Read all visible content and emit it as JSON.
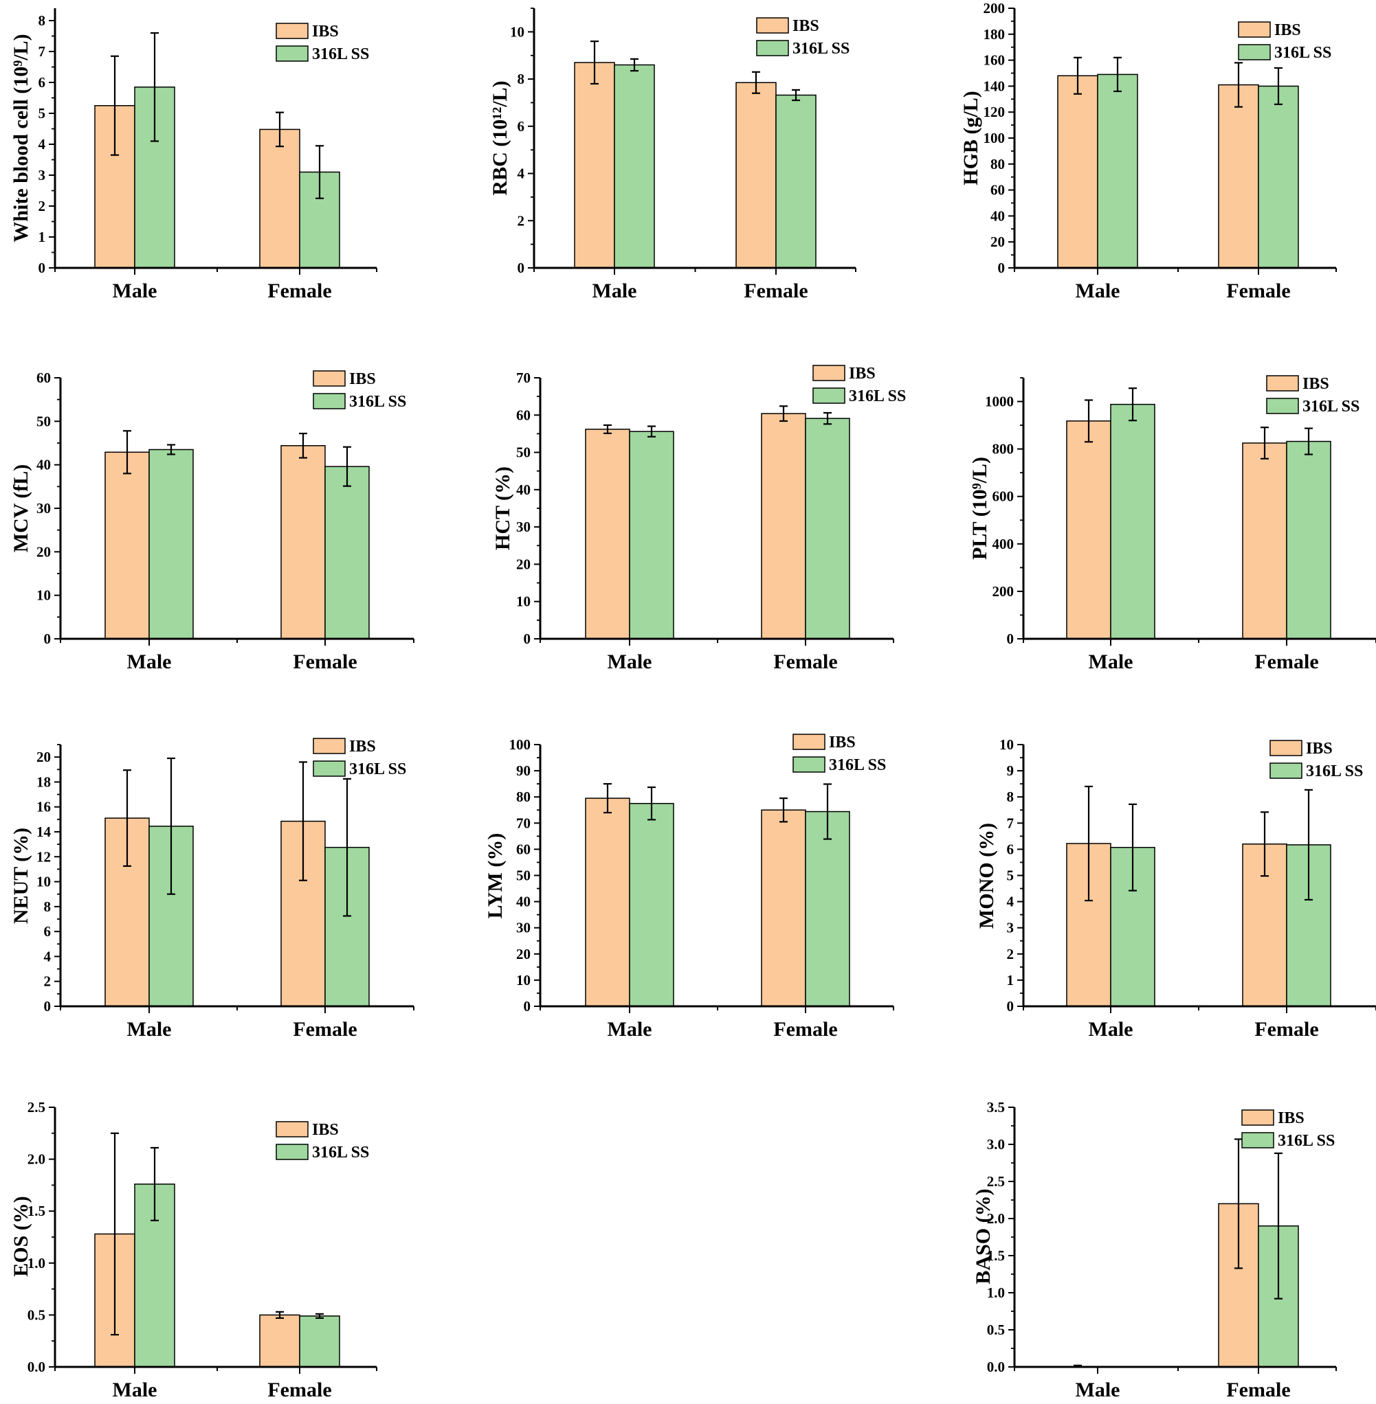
{
  "colors": {
    "IBS": "#fcc99a",
    "316L SS": "#a0d89f",
    "axis": "#000000"
  },
  "chart_data": [
    {
      "id": "wbc",
      "type": "bar",
      "ylabel": "White blood cell (10⁹/L)",
      "categories": [
        "Male",
        "Female"
      ],
      "ylim": [
        0,
        8.4
      ],
      "yticks": [
        "0",
        "1",
        "2",
        "3",
        "4",
        "5",
        "6",
        "7",
        "8"
      ],
      "ytick_values": [
        0,
        1,
        2,
        3,
        4,
        5,
        6,
        7,
        8
      ],
      "series": [
        {
          "name": "IBS",
          "values": [
            5.25,
            4.48
          ],
          "errors": [
            1.6,
            0.55
          ]
        },
        {
          "name": "316L SS",
          "values": [
            5.85,
            3.1
          ],
          "errors": [
            1.75,
            0.85
          ]
        }
      ]
    },
    {
      "id": "rbc",
      "type": "bar",
      "ylabel": "RBC (10¹²/L)",
      "categories": [
        "Male",
        "Female"
      ],
      "ylim": [
        0,
        11
      ],
      "yticks": [
        "0",
        "2",
        "4",
        "6",
        "8",
        "10"
      ],
      "ytick_values": [
        0,
        2,
        4,
        6,
        8,
        10
      ],
      "series": [
        {
          "name": "IBS",
          "values": [
            8.7,
            7.85
          ],
          "errors": [
            0.9,
            0.45
          ]
        },
        {
          "name": "316L SS",
          "values": [
            8.6,
            7.32
          ],
          "errors": [
            0.25,
            0.22
          ]
        }
      ]
    },
    {
      "id": "hgb",
      "type": "bar",
      "ylabel": "HGB (g/L)",
      "categories": [
        "Male",
        "Female"
      ],
      "ylim": [
        0,
        200
      ],
      "yticks": [
        "0",
        "20",
        "40",
        "60",
        "80",
        "100",
        "120",
        "140",
        "160",
        "180",
        "200"
      ],
      "ytick_values": [
        0,
        20,
        40,
        60,
        80,
        100,
        120,
        140,
        160,
        180,
        200
      ],
      "series": [
        {
          "name": "IBS",
          "values": [
            148,
            141
          ],
          "errors": [
            14,
            17
          ]
        },
        {
          "name": "316L SS",
          "values": [
            149,
            140
          ],
          "errors": [
            13,
            14
          ]
        }
      ]
    },
    {
      "id": "mcv",
      "type": "bar",
      "ylabel": "MCV (fL)",
      "categories": [
        "Male",
        "Female"
      ],
      "ylim": [
        0,
        60
      ],
      "yticks": [
        "0",
        "10",
        "20",
        "30",
        "40",
        "50",
        "60"
      ],
      "ytick_values": [
        0,
        10,
        20,
        30,
        40,
        50,
        60
      ],
      "series": [
        {
          "name": "IBS",
          "values": [
            42.9,
            44.4
          ],
          "errors": [
            4.9,
            2.8
          ]
        },
        {
          "name": "316L SS",
          "values": [
            43.5,
            39.6
          ],
          "errors": [
            1.1,
            4.5
          ]
        }
      ]
    },
    {
      "id": "hct",
      "type": "bar",
      "ylabel": "HCT (%)",
      "categories": [
        "Male",
        "Female"
      ],
      "ylim": [
        0,
        70
      ],
      "yticks": [
        "0",
        "10",
        "20",
        "30",
        "40",
        "50",
        "60",
        "70"
      ],
      "ytick_values": [
        0,
        10,
        20,
        30,
        40,
        50,
        60,
        70
      ],
      "series": [
        {
          "name": "IBS",
          "values": [
            56.2,
            60.4
          ],
          "errors": [
            1.1,
            2.0
          ]
        },
        {
          "name": "316L SS",
          "values": [
            55.6,
            59.1
          ],
          "errors": [
            1.4,
            1.5
          ]
        }
      ]
    },
    {
      "id": "plt",
      "type": "bar",
      "ylabel": "PLT (10⁹/L)",
      "categories": [
        "Male",
        "Female"
      ],
      "ylim": [
        0,
        1100
      ],
      "yticks": [
        "0",
        "200",
        "400",
        "600",
        "800",
        "1000"
      ],
      "ytick_values": [
        0,
        200,
        400,
        600,
        800,
        1000
      ],
      "series": [
        {
          "name": "IBS",
          "values": [
            918,
            825
          ],
          "errors": [
            88,
            66
          ]
        },
        {
          "name": "316L SS",
          "values": [
            988,
            832
          ],
          "errors": [
            68,
            55
          ]
        }
      ]
    },
    {
      "id": "neut",
      "type": "bar",
      "ylabel": "NEUT (%)",
      "categories": [
        "Male",
        "Female"
      ],
      "ylim": [
        0,
        21
      ],
      "yticks": [
        "0",
        "2",
        "4",
        "6",
        "8",
        "10",
        "12",
        "14",
        "16",
        "18",
        "20"
      ],
      "ytick_values": [
        0,
        2,
        4,
        6,
        8,
        10,
        12,
        14,
        16,
        18,
        20
      ],
      "series": [
        {
          "name": "IBS",
          "values": [
            15.1,
            14.85
          ],
          "errors": [
            3.85,
            4.75
          ]
        },
        {
          "name": "316L SS",
          "values": [
            14.45,
            12.75
          ],
          "errors": [
            5.45,
            5.5
          ]
        }
      ]
    },
    {
      "id": "lym",
      "type": "bar",
      "ylabel": "LYM (%)",
      "categories": [
        "Male",
        "Female"
      ],
      "ylim": [
        0,
        100
      ],
      "yticks": [
        "0",
        "10",
        "20",
        "30",
        "40",
        "50",
        "60",
        "70",
        "80",
        "90",
        "100"
      ],
      "ytick_values": [
        0,
        10,
        20,
        30,
        40,
        50,
        60,
        70,
        80,
        90,
        100
      ],
      "series": [
        {
          "name": "IBS",
          "values": [
            79.5,
            75.0
          ],
          "errors": [
            5.5,
            4.5
          ]
        },
        {
          "name": "316L SS",
          "values": [
            77.5,
            74.4
          ],
          "errors": [
            6.2,
            10.5
          ]
        }
      ]
    },
    {
      "id": "mono",
      "type": "bar",
      "ylabel": "MONO (%)",
      "categories": [
        "Male",
        "Female"
      ],
      "ylim": [
        0,
        10
      ],
      "yticks": [
        "0",
        "1",
        "2",
        "3",
        "4",
        "5",
        "6",
        "7",
        "8",
        "9",
        "10"
      ],
      "ytick_values": [
        0,
        1,
        2,
        3,
        4,
        5,
        6,
        7,
        8,
        9,
        10
      ],
      "series": [
        {
          "name": "IBS",
          "values": [
            6.22,
            6.2
          ],
          "errors": [
            2.18,
            1.22
          ]
        },
        {
          "name": "316L SS",
          "values": [
            6.07,
            6.17
          ],
          "errors": [
            1.65,
            2.1
          ]
        }
      ]
    },
    {
      "id": "eos",
      "type": "bar",
      "ylabel": "EOS (%)",
      "categories": [
        "Male",
        "Female"
      ],
      "ylim": [
        0,
        2.5
      ],
      "yticks": [
        "0.0",
        "0.5",
        "1.0",
        "1.5",
        "2.0",
        "2.5"
      ],
      "ytick_values": [
        0,
        0.5,
        1.0,
        1.5,
        2.0,
        2.5
      ],
      "series": [
        {
          "name": "IBS",
          "values": [
            1.28,
            0.5
          ],
          "errors": [
            0.97,
            0.03
          ]
        },
        {
          "name": "316L SS",
          "values": [
            1.76,
            0.49
          ],
          "errors": [
            0.35,
            0.02
          ]
        }
      ]
    },
    {
      "id": "baso",
      "type": "bar",
      "ylabel": "BASO (%)",
      "categories": [
        "Male",
        "Female"
      ],
      "ylim": [
        0,
        3.5
      ],
      "yticks": [
        "0.0",
        "0.5",
        "1.0",
        "1.5",
        "2.0",
        "2.5",
        "3.0",
        "3.5"
      ],
      "ytick_values": [
        0,
        0.5,
        1.0,
        1.5,
        2.0,
        2.5,
        3.0,
        3.5
      ],
      "series": [
        {
          "name": "IBS",
          "values": [
            0,
            2.2
          ],
          "errors": [
            0.02,
            0.87
          ]
        },
        {
          "name": "316L SS",
          "values": [
            0,
            1.9
          ],
          "errors": [
            0,
            0.98
          ]
        }
      ]
    }
  ]
}
